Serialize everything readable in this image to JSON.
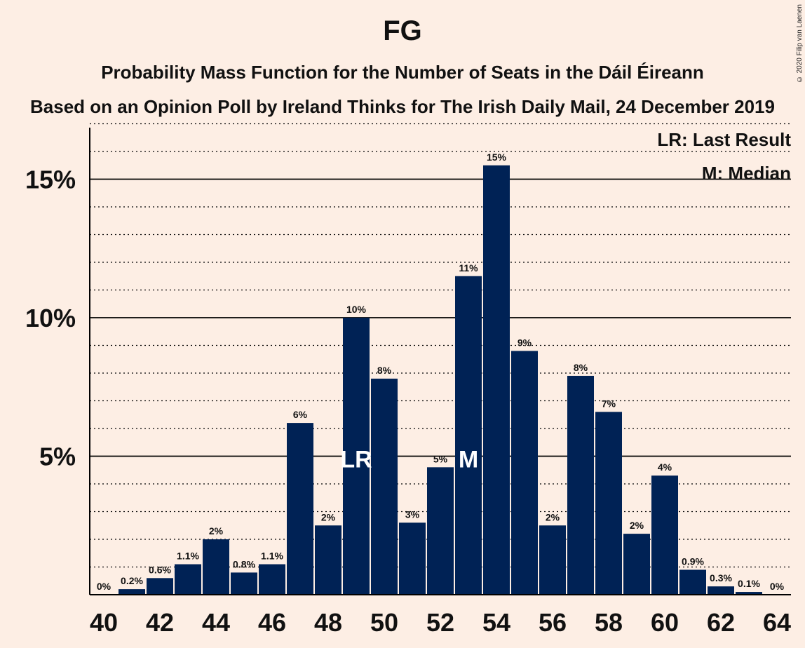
{
  "header": {
    "title": "FG",
    "subtitle": "Probability Mass Function for the Number of Seats in the Dáil Éireann",
    "subtitle2": "Based on an Opinion Poll by Ireland Thinks for The Irish Daily Mail, 24 December 2019",
    "copyright": "© 2020 Filip van Laenen"
  },
  "legend": {
    "last_result": "LR: Last Result",
    "median": "M: Median"
  },
  "colors": {
    "background": "#FDEEE4",
    "bar": "#002255",
    "bar_label_inside": "#FFFFFF"
  },
  "chart_data": {
    "type": "bar",
    "x": [
      40,
      41,
      42,
      43,
      44,
      45,
      46,
      47,
      48,
      49,
      50,
      51,
      52,
      53,
      54,
      55,
      56,
      57,
      58,
      59,
      60,
      61,
      62,
      63,
      64
    ],
    "values": [
      0,
      0.2,
      0.6,
      1.1,
      2.0,
      0.8,
      1.1,
      6.2,
      2.5,
      10.0,
      7.8,
      2.6,
      4.6,
      11.5,
      15.5,
      8.8,
      2.5,
      7.9,
      6.6,
      2.2,
      4.3,
      0.9,
      0.3,
      0.1,
      0
    ],
    "data_labels": [
      "0%",
      "0.2%",
      "0.6%",
      "1.1%",
      "2%",
      "0.8%",
      "1.1%",
      "6%",
      "2%",
      "10%",
      "8%",
      "3%",
      "5%",
      "11%",
      "15%",
      "9%",
      "2%",
      "8%",
      "7%",
      "2%",
      "4%",
      "0.9%",
      "0.3%",
      "0.1%",
      "0%"
    ],
    "x_tick_labels": [
      "40",
      "42",
      "44",
      "46",
      "48",
      "50",
      "52",
      "54",
      "56",
      "58",
      "60",
      "62",
      "64"
    ],
    "y_tick_labels": [
      "5%",
      "10%",
      "15%"
    ],
    "y_ticks": [
      5,
      10,
      15
    ],
    "ylim": [
      0,
      17
    ],
    "minor_grid_step": 1,
    "markers": [
      {
        "x": 49,
        "label": "LR"
      },
      {
        "x": 53,
        "label": "M"
      }
    ]
  }
}
